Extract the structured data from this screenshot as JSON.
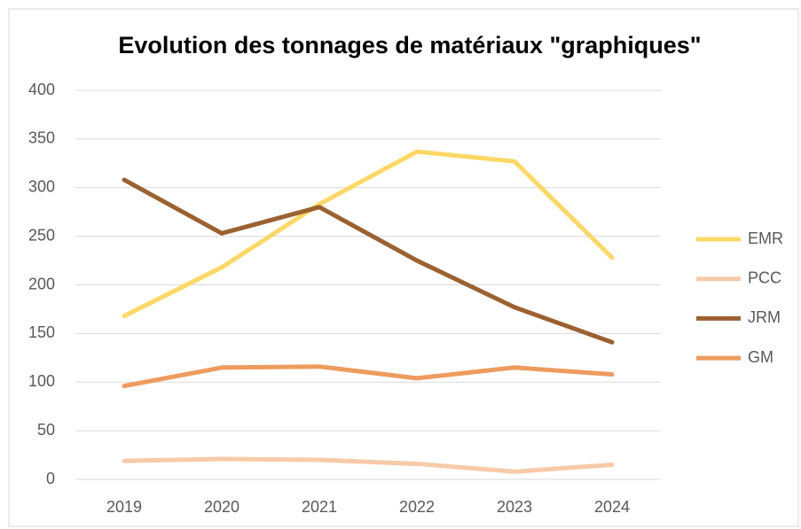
{
  "chart_data": {
    "type": "line",
    "title": "Evolution des tonnages de matériaux \"graphiques\"",
    "categories": [
      "2019",
      "2020",
      "2021",
      "2022",
      "2023",
      "2024"
    ],
    "series": [
      {
        "name": "EMR",
        "color": "#fdd865",
        "values": [
          168,
          218,
          283,
          337,
          327,
          228
        ]
      },
      {
        "name": "PCC",
        "color": "#f8caa8",
        "values": [
          19,
          21,
          20,
          16,
          8,
          15
        ]
      },
      {
        "name": "JRM",
        "color": "#9b6130",
        "values": [
          308,
          253,
          280,
          225,
          177,
          141
        ]
      },
      {
        "name": "GM",
        "color": "#ee9b5e",
        "values": [
          96,
          115,
          116,
          104,
          115,
          108
        ]
      }
    ],
    "ylim": [
      0,
      400
    ],
    "yticks": [
      0,
      50,
      100,
      150,
      200,
      250,
      300,
      350,
      400
    ],
    "grid": true,
    "legend": "right"
  }
}
